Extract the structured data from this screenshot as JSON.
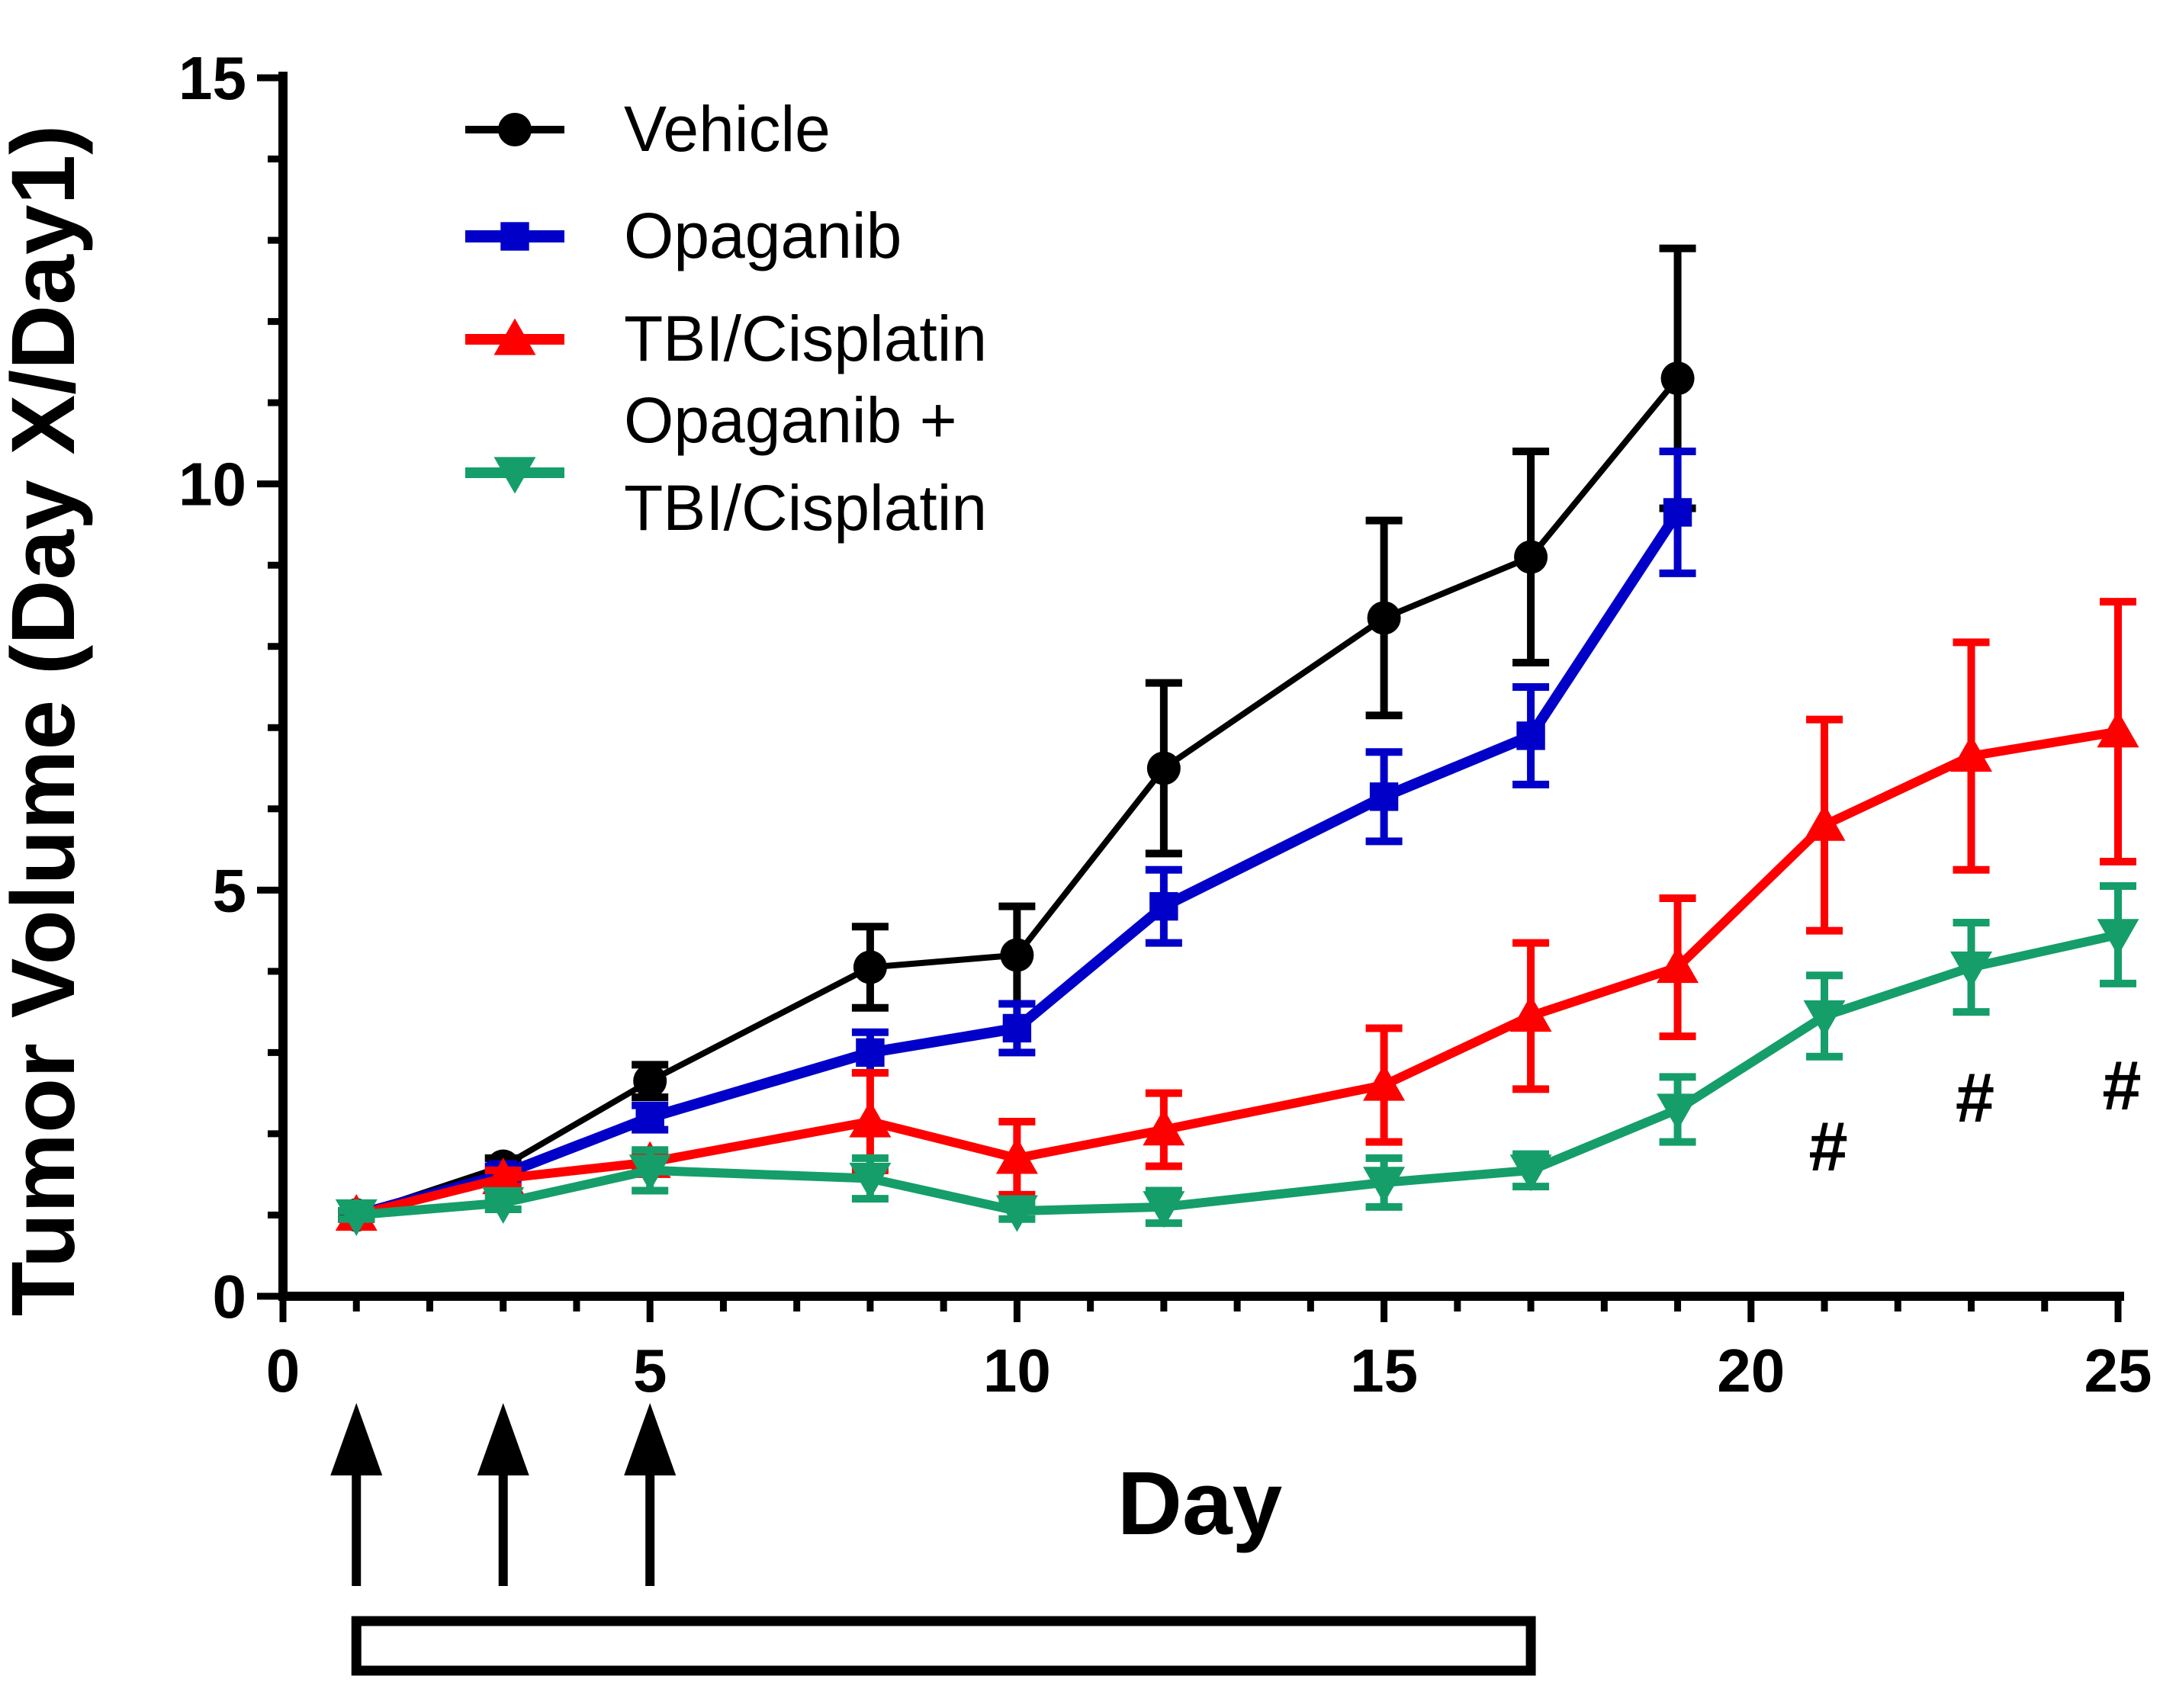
{
  "chart_data": {
    "type": "line",
    "xlabel": "Day",
    "ylabel": "Tumor Volume (Day X/Day1)",
    "xlim": [
      0,
      25
    ],
    "ylim": [
      0,
      15
    ],
    "xticks": [
      0,
      5,
      10,
      15,
      20,
      25
    ],
    "yticks": [
      0,
      5,
      10,
      15
    ],
    "x_minor_step": 1,
    "y_minor_step": 1,
    "grid": false,
    "legend_position": "top-left",
    "series": [
      {
        "name": "Vehicle",
        "color": "#000000",
        "marker": "circle",
        "x": [
          1,
          3,
          5,
          8,
          10,
          12,
          15,
          17,
          19
        ],
        "y": [
          1.0,
          1.6,
          2.65,
          4.05,
          4.2,
          6.5,
          8.35,
          9.1,
          11.3
        ],
        "err": [
          0.05,
          0.1,
          0.2,
          0.5,
          0.6,
          1.05,
          1.2,
          1.3,
          1.6
        ]
      },
      {
        "name": "Opaganib",
        "color": "#0000c8",
        "marker": "square",
        "x": [
          1,
          3,
          5,
          8,
          10,
          12,
          15,
          17,
          19
        ],
        "y": [
          1.0,
          1.5,
          2.2,
          3.0,
          3.3,
          4.8,
          6.15,
          6.9,
          9.65
        ],
        "err": [
          0.05,
          0.1,
          0.15,
          0.25,
          0.3,
          0.45,
          0.55,
          0.6,
          0.75
        ]
      },
      {
        "name": "TBI/Cisplatin",
        "color": "#ff0000",
        "marker": "triangle-up",
        "x": [
          1,
          3,
          5,
          8,
          10,
          12,
          15,
          17,
          19,
          21,
          23,
          25
        ],
        "y": [
          1.0,
          1.45,
          1.65,
          2.15,
          1.7,
          2.05,
          2.6,
          3.45,
          4.05,
          5.8,
          6.65,
          6.95
        ],
        "err": [
          0.05,
          0.1,
          0.1,
          0.6,
          0.45,
          0.45,
          0.7,
          0.9,
          0.85,
          1.3,
          1.4,
          1.6
        ]
      },
      {
        "name": "Opaganib + TBI/Cisplatin",
        "legend_lines": [
          "Opaganib +",
          "TBI/Cisplatin"
        ],
        "color": "#159e6a",
        "marker": "triangle-down",
        "x": [
          1,
          3,
          5,
          8,
          10,
          12,
          15,
          17,
          19,
          21,
          23,
          25
        ],
        "y": [
          1.0,
          1.15,
          1.55,
          1.45,
          1.05,
          1.1,
          1.4,
          1.55,
          2.3,
          3.45,
          4.05,
          4.45
        ],
        "err": [
          0.05,
          0.08,
          0.25,
          0.25,
          0.1,
          0.2,
          0.3,
          0.2,
          0.4,
          0.5,
          0.55,
          0.6
        ]
      }
    ],
    "annotations": [
      {
        "text": "#",
        "x": 21,
        "y": 1.85
      },
      {
        "text": "#",
        "x": 23,
        "y": 2.45
      },
      {
        "text": "#",
        "x": 25,
        "y": 2.6
      }
    ],
    "treatment_arrows_days": [
      1,
      3,
      5
    ],
    "treatment_bar_days": [
      1,
      17
    ]
  }
}
